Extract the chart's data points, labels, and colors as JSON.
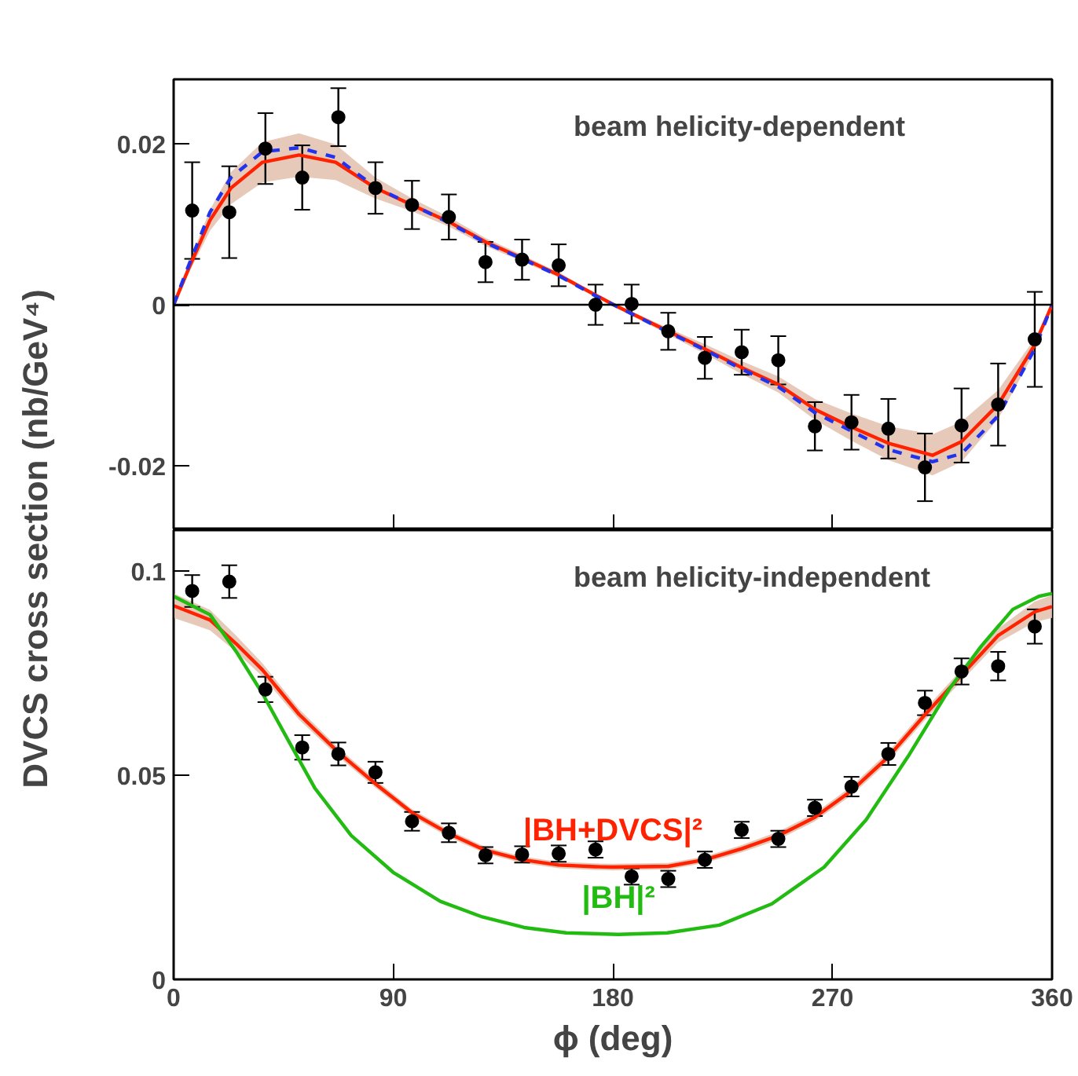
{
  "chart_data": [
    {
      "type": "scatter",
      "ylabel": "DVCS cross section (nb/GeV⁴)",
      "annotations": [
        "beam helicity-dependent"
      ],
      "xlim": [
        0,
        360
      ],
      "ylim": [
        -0.028,
        0.028
      ],
      "xticks": [
        0,
        90,
        180,
        270,
        360
      ],
      "yticks": [
        {
          "value": -0.02,
          "label": "-0.02"
        },
        0,
        {
          "value": 0.02,
          "label": "0.02"
        }
      ],
      "tick_labels": "y",
      "grid": false,
      "legend": false,
      "ref_lines": [
        {
          "axis": "y",
          "value": 0,
          "color": "#000000"
        }
      ],
      "series": [
        {
          "type": "line",
          "color": "#ff2200",
          "line_style": "solid",
          "marker": "none",
          "x": [
            0,
            6.3,
            14.9,
            23.5,
            36.4,
            51.4,
            66.4,
            82.7,
            97.7,
            112.8,
            127.8,
            142.8,
            157.8,
            172.9,
            180.3,
            202.7,
            217.7,
            232.8,
            247.8,
            262.8,
            277.8,
            292.9,
            311,
            322.9,
            337.9,
            352.9,
            360
          ],
          "values": [
            0,
            0.0046,
            0.0105,
            0.0145,
            0.0177,
            0.0186,
            0.0177,
            0.0145,
            0.0124,
            0.0103,
            0.0078,
            0.0058,
            0.0037,
            0.0012,
            0,
            -0.0033,
            -0.0055,
            -0.0078,
            -0.0099,
            -0.013,
            -0.0152,
            -0.0172,
            -0.0187,
            -0.017,
            -0.0124,
            -0.005,
            0
          ],
          "lower": [
            0,
            0.004,
            0.0092,
            0.0125,
            0.0152,
            0.0159,
            0.0155,
            0.0132,
            0.0116,
            0.0097,
            0.0073,
            0.0054,
            0.0034,
            0.001,
            -0.0002,
            -0.0037,
            -0.0061,
            -0.0086,
            -0.0109,
            -0.0143,
            -0.0169,
            -0.0193,
            -0.0212,
            -0.0195,
            -0.0142,
            -0.0058,
            0
          ],
          "upper": [
            0,
            0.0052,
            0.0118,
            0.0165,
            0.0202,
            0.0213,
            0.0199,
            0.0158,
            0.0132,
            0.0109,
            0.0083,
            0.0062,
            0.004,
            0.0014,
            0.0002,
            -0.0029,
            -0.0049,
            -0.007,
            -0.0089,
            -0.0117,
            -0.0135,
            -0.0151,
            -0.0161,
            -0.0145,
            -0.0106,
            -0.0042,
            0
          ]
        },
        {
          "type": "line",
          "color": "#2233ee",
          "line_style": "dashed",
          "marker": "none",
          "x": [
            0,
            6.3,
            14.9,
            23.5,
            36.4,
            51.4,
            66.4,
            82.7,
            97.7,
            112.8,
            127.8,
            142.8,
            157.8,
            172.9,
            180.3,
            202.7,
            217.7,
            232.8,
            247.8,
            262.8,
            277.8,
            292.9,
            311,
            322.9,
            337.9,
            352.9,
            360
          ],
          "values": [
            0,
            0.005,
            0.0115,
            0.0158,
            0.019,
            0.0195,
            0.0183,
            0.0146,
            0.0124,
            0.0102,
            0.0077,
            0.0057,
            0.0036,
            0.0011,
            0,
            -0.0034,
            -0.0056,
            -0.008,
            -0.0102,
            -0.0134,
            -0.0157,
            -0.018,
            -0.0195,
            -0.0185,
            -0.0138,
            -0.0055,
            0
          ]
        },
        {
          "marker": "circle",
          "color": "#000000",
          "x": [
            7.6,
            22.8,
            37.6,
            52.7,
            67.5,
            82.7,
            97.7,
            112.8,
            127.8,
            142.8,
            157.8,
            172.9,
            187.7,
            202.7,
            217.7,
            232.8,
            247.8,
            262.8,
            277.8,
            292.9,
            307.9,
            322.9,
            337.9,
            352.9
          ],
          "values": [
            0.0117,
            0.0115,
            0.0194,
            0.0158,
            0.0233,
            0.0145,
            0.0124,
            0.0109,
            0.0053,
            0.0056,
            0.0049,
            0.0,
            0.0001,
            -0.0033,
            -0.0066,
            -0.0059,
            -0.0069,
            -0.0151,
            -0.0146,
            -0.0154,
            -0.0202,
            -0.015,
            -0.0124,
            -0.0043
          ],
          "errors": [
            0.006,
            0.0057,
            0.0044,
            0.004,
            0.0036,
            0.0032,
            0.003,
            0.0028,
            0.0025,
            0.0025,
            0.0026,
            0.0025,
            0.0024,
            0.0023,
            0.0026,
            0.0028,
            0.003,
            0.003,
            0.0034,
            0.0037,
            0.0042,
            0.0046,
            0.0051,
            0.0059
          ]
        }
      ]
    },
    {
      "type": "scatter",
      "xlabel": "ϕ (deg)",
      "annotations": [
        "beam helicity-independent"
      ],
      "xlim": [
        0,
        360
      ],
      "ylim": [
        0,
        0.11
      ],
      "xticks": [
        0,
        90,
        180,
        270,
        360
      ],
      "yticks": [
        0,
        {
          "value": 0.05,
          "label": "0.05"
        },
        {
          "value": 0.1,
          "label": "0.1"
        }
      ],
      "grid": false,
      "legend": false,
      "series": [
        {
          "type": "line",
          "name": "|BH+DVCS|²",
          "marker": "none",
          "color": "#ff2200",
          "x": [
            0,
            14.9,
            25.6,
            36.4,
            51.4,
            67.5,
            82.7,
            97.7,
            112.8,
            127.8,
            142.8,
            157.8,
            172.9,
            180,
            202.7,
            217.7,
            232.8,
            247.8,
            262.8,
            277.8,
            292.9,
            307.9,
            322.9,
            337.9,
            352.9,
            360
          ],
          "values": [
            0.0915,
            0.088,
            0.0822,
            0.0758,
            0.0649,
            0.0556,
            0.0479,
            0.0408,
            0.0357,
            0.0316,
            0.0293,
            0.028,
            0.0276,
            0.0275,
            0.0277,
            0.0293,
            0.032,
            0.0352,
            0.0397,
            0.0462,
            0.0545,
            0.0648,
            0.0745,
            0.0842,
            0.09,
            0.0913
          ],
          "lower": [
            0.0885,
            0.0855,
            0.0802,
            0.0742,
            0.0636,
            0.0545,
            0.0469,
            0.0399,
            0.0348,
            0.0308,
            0.0285,
            0.0272,
            0.0268,
            0.0267,
            0.0269,
            0.0285,
            0.0311,
            0.0342,
            0.0387,
            0.0451,
            0.0533,
            0.0635,
            0.0731,
            0.0825,
            0.0875,
            0.0885
          ],
          "upper": [
            0.0945,
            0.0905,
            0.0842,
            0.0774,
            0.0662,
            0.0567,
            0.0489,
            0.0417,
            0.0366,
            0.0324,
            0.0301,
            0.0288,
            0.0284,
            0.0283,
            0.0285,
            0.0301,
            0.0329,
            0.0362,
            0.0407,
            0.0473,
            0.0557,
            0.0661,
            0.0759,
            0.0859,
            0.0925,
            0.0941
          ]
        },
        {
          "type": "line",
          "name": "|BH|²",
          "marker": "none",
          "color": "#22bb11",
          "x": [
            0,
            14.9,
            25.6,
            36.4,
            47.1,
            57.9,
            72.8,
            90,
            109.3,
            126.5,
            143.7,
            160.9,
            182.3,
            202.3,
            223.7,
            245.2,
            266.6,
            283.8,
            301,
            318.1,
            331,
            343.9,
            354.6,
            360
          ],
          "values": [
            0.0938,
            0.0893,
            0.0803,
            0.07,
            0.0584,
            0.0468,
            0.0352,
            0.0262,
            0.0191,
            0.0153,
            0.0127,
            0.0114,
            0.011,
            0.0114,
            0.0133,
            0.0185,
            0.0275,
            0.0391,
            0.0546,
            0.0713,
            0.0816,
            0.0906,
            0.0938,
            0.0945
          ]
        },
        {
          "marker": "circle",
          "color": "#000000",
          "x": [
            7.6,
            22.8,
            37.6,
            52.7,
            67.5,
            82.7,
            97.7,
            112.8,
            127.8,
            142.8,
            157.8,
            172.9,
            187.7,
            202.7,
            217.7,
            232.8,
            247.8,
            262.8,
            277.8,
            292.9,
            307.9,
            322.9,
            337.9,
            352.9
          ],
          "values": [
            0.0951,
            0.0974,
            0.071,
            0.0568,
            0.0552,
            0.0507,
            0.0387,
            0.0359,
            0.0304,
            0.0306,
            0.0308,
            0.0318,
            0.0252,
            0.0246,
            0.0293,
            0.0366,
            0.0344,
            0.042,
            0.0472,
            0.0552,
            0.0677,
            0.0754,
            0.0767,
            0.0864
          ],
          "errors": [
            0.0039,
            0.004,
            0.0031,
            0.003,
            0.0028,
            0.0026,
            0.0023,
            0.0023,
            0.002,
            0.002,
            0.002,
            0.002,
            0.002,
            0.002,
            0.002,
            0.002,
            0.002,
            0.002,
            0.0024,
            0.0027,
            0.003,
            0.0032,
            0.0035,
            0.0042
          ]
        }
      ]
    }
  ]
}
